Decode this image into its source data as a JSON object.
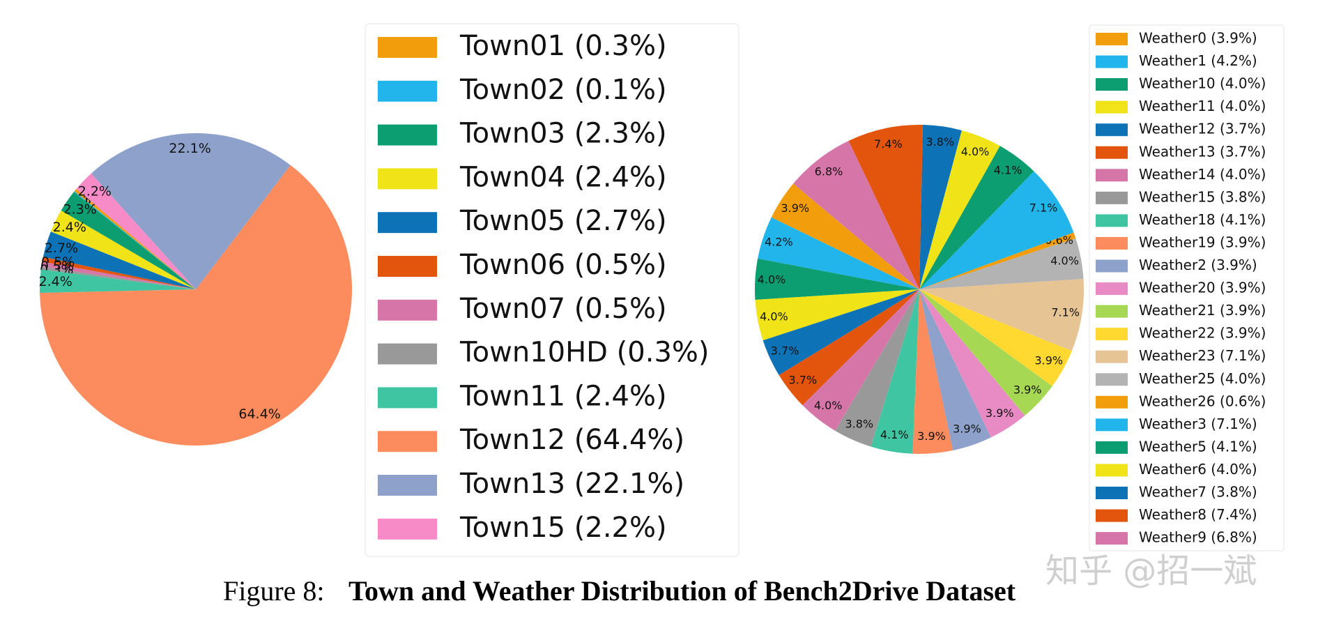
{
  "chart_data": [
    {
      "type": "pie",
      "categories": [
        "Town01 (0.3%)",
        "Town02 (0.1%)",
        "Town03 (2.3%)",
        "Town04 (2.4%)",
        "Town05 (2.7%)",
        "Town06 (0.5%)",
        "Town07 (0.5%)",
        "Town10HD (0.3%)",
        "Town11 (2.4%)",
        "Town12 (64.4%)",
        "Town13 (22.1%)",
        "Town15 (2.2%)"
      ],
      "values": [
        0.3,
        0.1,
        2.3,
        2.4,
        2.7,
        0.5,
        0.5,
        0.3,
        2.4,
        64.4,
        22.1,
        2.2
      ],
      "value_labels": [
        "0.3%",
        "0.1%",
        "2.3%",
        "2.4%",
        "2.7%",
        "0.5%",
        "0.5%",
        "0.3%",
        "2.4%",
        "64.4%",
        "22.1%",
        "2.2%"
      ],
      "colors": [
        "#f29e0c",
        "#22b5ec",
        "#0c9e70",
        "#f0e318",
        "#0d72b6",
        "#e3540c",
        "#d676a8",
        "#999999",
        "#3fc5a2",
        "#fc8b5d",
        "#8da1cb",
        "#f68bc8"
      ]
    },
    {
      "type": "pie",
      "categories": [
        "Weather0 (3.9%)",
        "Weather1 (4.2%)",
        "Weather10 (4.0%)",
        "Weather11 (4.0%)",
        "Weather12 (3.7%)",
        "Weather13 (3.7%)",
        "Weather14 (4.0%)",
        "Weather15 (3.8%)",
        "Weather18 (4.1%)",
        "Weather19 (3.9%)",
        "Weather2 (3.9%)",
        "Weather20 (3.9%)",
        "Weather21 (3.9%)",
        "Weather22 (3.9%)",
        "Weather23 (7.1%)",
        "Weather25 (4.0%)",
        "Weather26 (0.6%)",
        "Weather3 (7.1%)",
        "Weather5 (4.1%)",
        "Weather6 (4.0%)",
        "Weather7 (3.8%)",
        "Weather8 (7.4%)",
        "Weather9 (6.8%)"
      ],
      "values": [
        3.9,
        4.2,
        4.0,
        4.0,
        3.7,
        3.7,
        4.0,
        3.8,
        4.1,
        3.9,
        3.9,
        3.9,
        3.9,
        3.9,
        7.1,
        4.0,
        0.6,
        7.1,
        4.1,
        4.0,
        3.8,
        7.4,
        6.8
      ],
      "value_labels": [
        "3.9%",
        "4.2%",
        "4.0%",
        "4.0%",
        "3.7%",
        "3.7%",
        "4.0%",
        "3.8%",
        "4.1%",
        "3.9%",
        "3.9%",
        "3.9%",
        "3.9%",
        "3.9%",
        "7.1%",
        "4.0%",
        "0.6%",
        "7.1%",
        "4.1%",
        "4.0%",
        "3.8%",
        "7.4%",
        "6.8%"
      ],
      "colors": [
        "#f29e0c",
        "#22b5ec",
        "#0c9e70",
        "#f0e318",
        "#0d72b6",
        "#e3540c",
        "#d676a8",
        "#999999",
        "#3fc5a2",
        "#fc8b5d",
        "#8da1cb",
        "#e88bc4",
        "#a6d854",
        "#ffd92f",
        "#e6c494",
        "#b3b3b3",
        "#f29e0c",
        "#22b5ec",
        "#0c9e70",
        "#f0e318",
        "#0d72b6",
        "#e3540c",
        "#d676a8"
      ]
    }
  ],
  "caption": {
    "label": "Figure 8:",
    "text": "Town and Weather Distribution of Bench2Drive Dataset"
  },
  "watermark": "知乎 @招一斌"
}
